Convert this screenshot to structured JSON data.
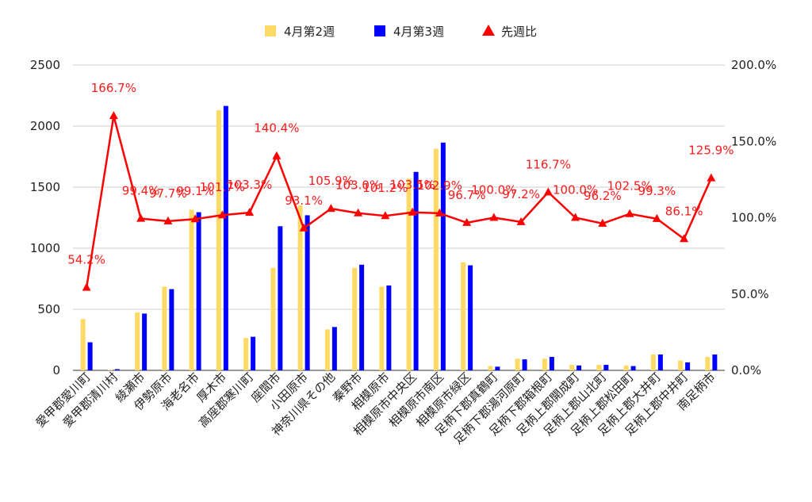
{
  "chart_data": {
    "type": "bar",
    "categories": [
      "愛甲郡愛川町",
      "愛甲郡清川村",
      "綾瀬市",
      "伊勢原市",
      "海老名市",
      "厚木市",
      "高座郡寒川町",
      "座間市",
      "小田原市",
      "神奈川県その他",
      "秦野市",
      "相模原市",
      "相模原市中央区",
      "相模原市南区",
      "相模原市緑区",
      "足柄下郡真鶴町",
      "足柄下郡湯河原町",
      "足柄下郡箱根町",
      "足柄上郡開成町",
      "足柄上郡山北町",
      "足柄上郡松田町",
      "足柄上郡大井町",
      "足柄上郡中井町",
      "南足柄市"
    ],
    "series": [
      {
        "name": "4月第2週",
        "axis": "left",
        "type": "bar",
        "color": "#ffd966",
        "values": [
          420,
          5,
          475,
          685,
          1315,
          2130,
          265,
          840,
          1350,
          335,
          840,
          685,
          1570,
          1815,
          885,
          35,
          95,
          95,
          45,
          45,
          40,
          130,
          80,
          110
        ]
      },
      {
        "name": "4月第3週",
        "axis": "left",
        "type": "bar",
        "color": "#0000ff",
        "values": [
          230,
          10,
          465,
          665,
          1295,
          2165,
          275,
          1180,
          1270,
          355,
          865,
          695,
          1625,
          1865,
          860,
          30,
          90,
          110,
          40,
          45,
          35,
          130,
          65,
          130
        ]
      },
      {
        "name": "先週比",
        "axis": "right",
        "type": "line",
        "color": "#ff0000",
        "values": [
          54.2,
          166.7,
          99.4,
          97.7,
          99.1,
          101.7,
          103.3,
          140.4,
          93.1,
          105.9,
          103.0,
          101.2,
          103.5,
          102.9,
          96.7,
          100.0,
          97.2,
          116.7,
          100.0,
          96.2,
          102.5,
          99.3,
          86.1,
          125.9
        ],
        "labels": [
          "54.2%",
          "166.7%",
          "99.4%",
          "97.7%",
          "99.1%",
          "101.7%",
          "103.3%",
          "140.4%",
          "93.1%",
          "105.9%",
          "103.0%",
          "101.2%",
          "103.5%",
          "102.9%",
          "96.7%",
          "100.0%",
          "97.2%",
          "116.7%",
          "100.0%",
          "96.2%",
          "102.5%",
          "99.3%",
          "86.1%",
          "125.9%"
        ]
      }
    ],
    "y_left": {
      "min": 0,
      "max": 2500,
      "ticks": [
        "0",
        "500",
        "1000",
        "1500",
        "2000",
        "2500"
      ]
    },
    "y_right": {
      "min": 0,
      "max": 200,
      "ticks": [
        "0.0%",
        "50.0%",
        "100.0%",
        "150.0%",
        "200.0%"
      ]
    },
    "title": "",
    "xlabel": "",
    "ylabel": "",
    "grid": true,
    "legend": "top-center"
  }
}
